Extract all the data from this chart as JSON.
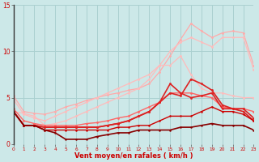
{
  "x": [
    0,
    1,
    2,
    3,
    4,
    5,
    6,
    7,
    8,
    9,
    10,
    11,
    12,
    13,
    14,
    15,
    16,
    17,
    18,
    19,
    20,
    21,
    22,
    23
  ],
  "series": [
    {
      "color": "#ffaaaa",
      "linewidth": 0.9,
      "marker": "o",
      "markersize": 2.0,
      "values": [
        5.2,
        3.5,
        3.3,
        3.2,
        3.5,
        4.0,
        4.3,
        4.7,
        5.0,
        5.3,
        5.5,
        5.8,
        6.0,
        6.5,
        7.8,
        9.5,
        11.3,
        13.0,
        12.2,
        11.5,
        12.0,
        12.2,
        12.0,
        8.5
      ]
    },
    {
      "color": "#ffbbbb",
      "linewidth": 0.9,
      "marker": "o",
      "markersize": 2.0,
      "values": [
        4.8,
        3.2,
        2.8,
        2.5,
        3.0,
        3.5,
        4.0,
        4.5,
        5.0,
        5.5,
        6.0,
        6.5,
        7.0,
        7.5,
        8.5,
        10.0,
        11.0,
        11.5,
        11.0,
        10.5,
        11.5,
        11.5,
        11.5,
        8.0
      ]
    },
    {
      "color": "#ffbbbb",
      "linewidth": 0.9,
      "marker": "o",
      "markersize": 2.0,
      "values": [
        3.5,
        3.3,
        3.0,
        2.0,
        2.2,
        2.5,
        3.0,
        3.5,
        4.0,
        4.5,
        5.0,
        5.5,
        6.0,
        7.0,
        8.5,
        8.5,
        9.5,
        7.5,
        6.0,
        5.5,
        5.5,
        5.2,
        5.0,
        5.0
      ]
    },
    {
      "color": "#ff6666",
      "linewidth": 1.0,
      "marker": "o",
      "markersize": 2.0,
      "values": [
        3.8,
        2.5,
        2.2,
        2.0,
        2.0,
        2.0,
        2.0,
        2.2,
        2.3,
        2.5,
        2.8,
        3.0,
        3.5,
        4.0,
        4.5,
        5.5,
        5.5,
        5.5,
        5.2,
        5.0,
        4.0,
        3.8,
        3.8,
        3.5
      ]
    },
    {
      "color": "#dd2222",
      "linewidth": 1.2,
      "marker": "o",
      "markersize": 2.0,
      "values": [
        3.5,
        2.0,
        2.0,
        1.8,
        1.8,
        1.8,
        1.8,
        1.8,
        1.8,
        2.0,
        2.2,
        2.5,
        3.0,
        3.5,
        4.5,
        5.5,
        5.2,
        7.0,
        6.5,
        5.8,
        4.2,
        3.8,
        3.8,
        2.8
      ]
    },
    {
      "color": "#dd2222",
      "linewidth": 1.2,
      "marker": "o",
      "markersize": 2.0,
      "values": [
        3.5,
        2.0,
        2.0,
        1.8,
        1.8,
        1.8,
        1.8,
        1.8,
        1.8,
        2.0,
        2.2,
        2.5,
        3.0,
        3.5,
        4.5,
        6.5,
        5.5,
        5.0,
        5.2,
        5.5,
        3.8,
        3.8,
        3.5,
        2.5
      ]
    },
    {
      "color": "#cc0000",
      "linewidth": 1.0,
      "marker": "o",
      "markersize": 1.8,
      "values": [
        3.5,
        2.0,
        2.0,
        1.5,
        1.5,
        1.5,
        1.5,
        1.5,
        1.5,
        1.5,
        1.8,
        1.8,
        2.0,
        2.0,
        2.5,
        3.0,
        3.0,
        3.0,
        3.5,
        4.0,
        3.5,
        3.5,
        3.2,
        2.5
      ]
    },
    {
      "color": "#880000",
      "linewidth": 1.2,
      "marker": "o",
      "markersize": 1.8,
      "values": [
        3.5,
        2.0,
        2.0,
        1.5,
        1.2,
        0.5,
        0.5,
        0.5,
        0.8,
        1.0,
        1.2,
        1.2,
        1.5,
        1.5,
        1.5,
        1.5,
        1.8,
        1.8,
        2.0,
        2.2,
        2.0,
        2.0,
        2.0,
        1.5
      ]
    }
  ],
  "xlabel": "Vent moyen/en rafales ( km/h )",
  "xlim": [
    0,
    23
  ],
  "ylim": [
    0,
    15
  ],
  "yticks": [
    0,
    5,
    10,
    15
  ],
  "xticks": [
    0,
    1,
    2,
    3,
    4,
    5,
    6,
    7,
    8,
    9,
    10,
    11,
    12,
    13,
    14,
    15,
    16,
    17,
    18,
    19,
    20,
    21,
    22,
    23
  ],
  "background_color": "#cce8e8",
  "grid_color": "#aad0d0",
  "tick_color": "#cc0000",
  "label_color": "#cc0000"
}
